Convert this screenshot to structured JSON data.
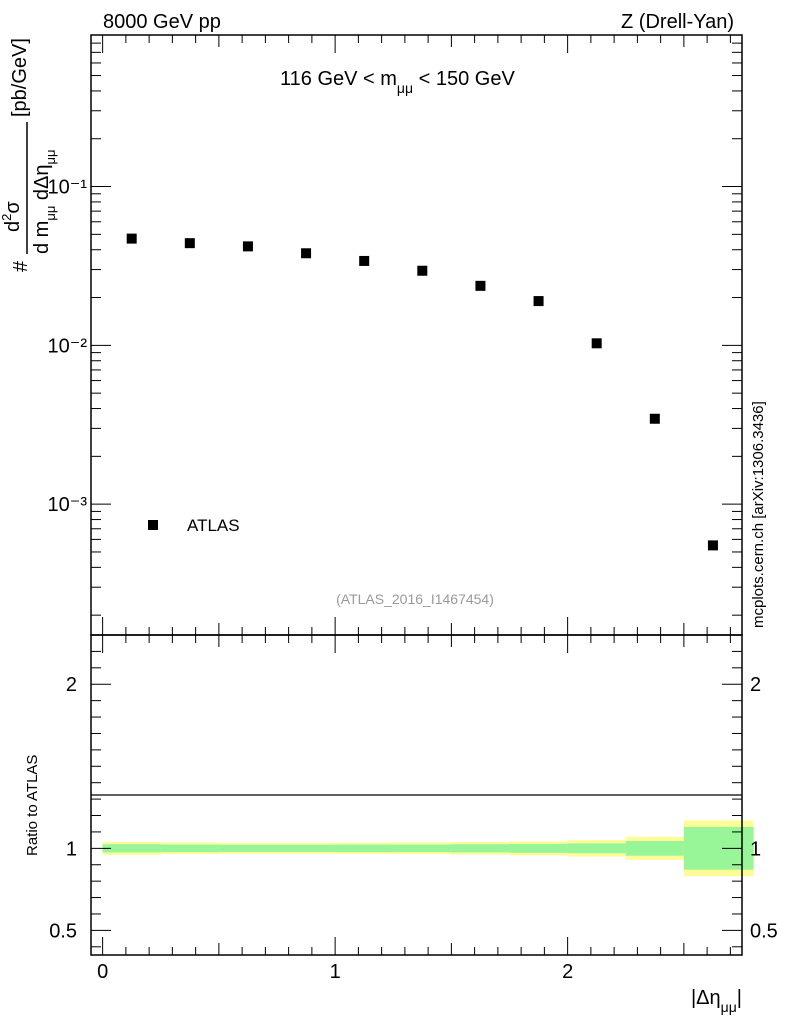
{
  "header": {
    "left_label": "8000 GeV pp",
    "right_label": "Z (Drell-Yan)"
  },
  "side_note": "mcplots.cern.ch [arXiv:1306.3436]",
  "chart_data": [
    {
      "type": "scatter",
      "panel": "main",
      "annotation": "116 GeV < m_μμ < 150 GeV",
      "ylabel": "d²σ / (d m_μμ dΔη_μμ) [pb/GeV]",
      "yscale": "log",
      "ylim": [
        0.00015,
        0.9
      ],
      "xlim": [
        -0.05,
        2.75
      ],
      "y_tick_labels": [
        "10⁻¹",
        "10⁻²",
        "10⁻³"
      ],
      "legend": {
        "label": "ATLAS",
        "position": "bottom-left"
      },
      "watermark": "(ATLAS_2016_I1467454)",
      "series": [
        {
          "name": "ATLAS",
          "marker": "square",
          "color": "#000000",
          "x": [
            0.125,
            0.375,
            0.625,
            0.875,
            1.125,
            1.375,
            1.625,
            1.875,
            2.125,
            2.375,
            2.625
          ],
          "y": [
            0.047,
            0.044,
            0.042,
            0.038,
            0.034,
            0.0295,
            0.0237,
            0.019,
            0.0103,
            0.00345,
            0.00055
          ]
        }
      ]
    },
    {
      "type": "area",
      "panel": "ratio",
      "ylabel": "Ratio to ATLAS",
      "xlabel": "|Δη_μμ|",
      "ylim": [
        0.35,
        2.3
      ],
      "xlim": [
        -0.05,
        2.75
      ],
      "x_tick_labels": [
        "0",
        "1",
        "2"
      ],
      "y_tick_labels": [
        "2",
        "1",
        "0.5"
      ],
      "reference_line": 1,
      "bins": [
        0,
        0.25,
        0.5,
        0.75,
        1.0,
        1.25,
        1.5,
        1.75,
        2.0,
        2.25,
        2.5,
        2.8
      ],
      "bands": [
        {
          "name": "stat",
          "color": "#98f598",
          "half_width": [
            0.025,
            0.023,
            0.022,
            0.022,
            0.023,
            0.023,
            0.025,
            0.027,
            0.03,
            0.045,
            0.13
          ]
        },
        {
          "name": "total",
          "color": "#fdfd98",
          "half_width": [
            0.04,
            0.035,
            0.033,
            0.033,
            0.034,
            0.035,
            0.038,
            0.043,
            0.05,
            0.07,
            0.17
          ]
        }
      ]
    }
  ],
  "colors": {
    "stat_band": "#98f598",
    "total_band": "#fdfd98",
    "data": "#000000"
  }
}
